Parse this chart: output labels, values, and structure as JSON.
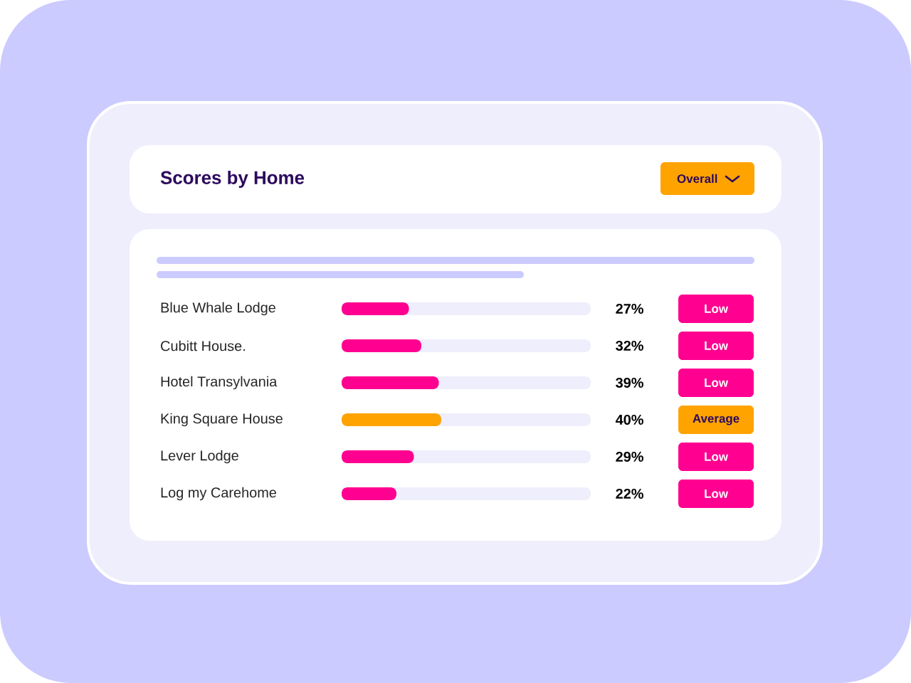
{
  "chart_data": {
    "type": "bar",
    "orientation": "horizontal",
    "title": "Scores by Home",
    "categories": [
      "Blue Whale Lodge",
      "Cubitt House.",
      "Hotel Transylvania",
      "King Square House",
      "Lever Lodge",
      "Log my Carehome"
    ],
    "values": [
      27,
      32,
      39,
      40,
      29,
      22
    ],
    "colors": [
      "#ff0090",
      "#ff0090",
      "#ff0090",
      "#ffa300",
      "#ff0090",
      "#ff0090"
    ],
    "value_labels": [
      "27%",
      "32%",
      "39%",
      "40%",
      "29%",
      "22%"
    ],
    "xlim": [
      0,
      100
    ],
    "tick_labels": "y",
    "annotations": [
      "Overall",
      "Low",
      "Low",
      "Low",
      "Average",
      "Low",
      "Low"
    ]
  }
}
